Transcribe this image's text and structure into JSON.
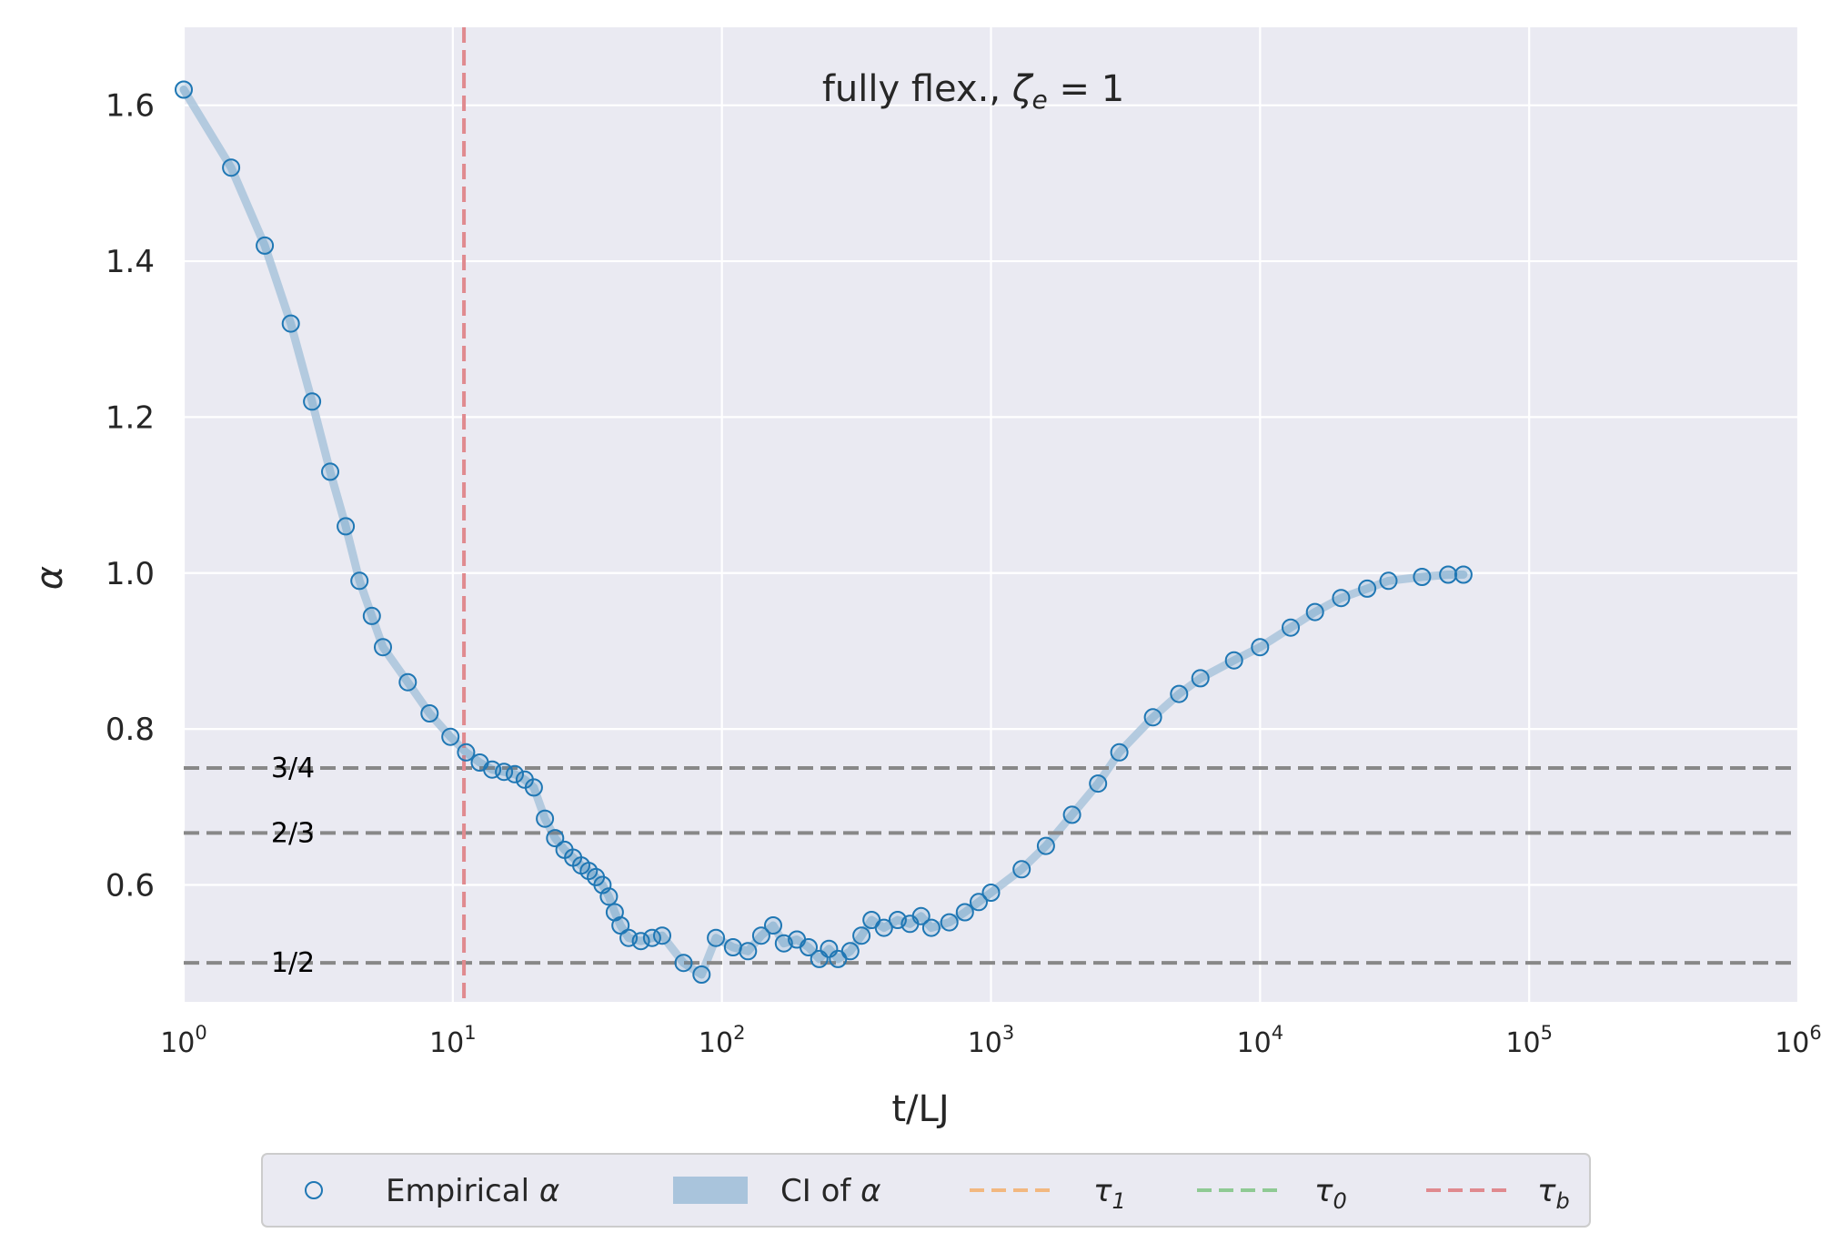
{
  "chart_data": {
    "type": "scatter",
    "title": "fully flex., ζ_e = 1",
    "title_main": "fully flex., ",
    "title_zeta": "ζ",
    "title_sub": "e",
    "title_eq": " = 1",
    "xlabel": "t/LJ",
    "ylabel": "α",
    "xscale": "log",
    "xlim": [
      1,
      1000000
    ],
    "ylim": [
      0.45,
      1.7
    ],
    "grid": true,
    "xticks": [
      {
        "value": 1,
        "base": "10",
        "exp": "0"
      },
      {
        "value": 10,
        "base": "10",
        "exp": "1"
      },
      {
        "value": 100,
        "base": "10",
        "exp": "2"
      },
      {
        "value": 1000,
        "base": "10",
        "exp": "3"
      },
      {
        "value": 10000,
        "base": "10",
        "exp": "4"
      },
      {
        "value": 100000,
        "base": "10",
        "exp": "5"
      },
      {
        "value": 1000000,
        "base": "10",
        "exp": "6"
      }
    ],
    "yticks": [
      {
        "value": 0.6,
        "label": "0.6"
      },
      {
        "value": 0.8,
        "label": "0.8"
      },
      {
        "value": 1.0,
        "label": "1.0"
      },
      {
        "value": 1.2,
        "label": "1.2"
      },
      {
        "value": 1.4,
        "label": "1.4"
      },
      {
        "value": 1.6,
        "label": "1.6"
      }
    ],
    "reference_lines": [
      {
        "value": 0.75,
        "label": "3/4"
      },
      {
        "value": 0.6667,
        "label": "2/3"
      },
      {
        "value": 0.5,
        "label": "1/2"
      }
    ],
    "tau_b": 11,
    "legend": {
      "placement": "bottom-center",
      "entries": [
        {
          "kind": "marker",
          "text": "Empirical ",
          "sym": "α",
          "sub": ""
        },
        {
          "kind": "patch",
          "text": "CI of ",
          "sym": "α",
          "sub": ""
        },
        {
          "kind": "dashed",
          "color": "#f2b880",
          "text": "",
          "sym": "τ",
          "sub": "1"
        },
        {
          "kind": "dashed",
          "color": "#8fca94",
          "text": "",
          "sym": "τ",
          "sub": "0"
        },
        {
          "kind": "dashed",
          "color": "#e08a8f",
          "text": "",
          "sym": "τ",
          "sub": "b"
        }
      ]
    },
    "colors": {
      "marker": "#1f77b4",
      "ci": "#a9c4dc",
      "tau_b": "#e08a8f",
      "reference": "#888888",
      "background": "#eaeaf2",
      "grid": "#ffffff"
    },
    "series": [
      {
        "name": "Empirical α",
        "points": [
          [
            1.0,
            1.62
          ],
          [
            1.5,
            1.52
          ],
          [
            2.0,
            1.42
          ],
          [
            2.5,
            1.32
          ],
          [
            3.0,
            1.22
          ],
          [
            3.5,
            1.13
          ],
          [
            4.0,
            1.06
          ],
          [
            4.5,
            0.99
          ],
          [
            5.0,
            0.945
          ],
          [
            5.5,
            0.905
          ],
          [
            6.8,
            0.86
          ],
          [
            8.2,
            0.82
          ],
          [
            9.8,
            0.79
          ],
          [
            11.2,
            0.77
          ],
          [
            12.6,
            0.757
          ],
          [
            14.0,
            0.748
          ],
          [
            15.5,
            0.745
          ],
          [
            17.0,
            0.742
          ],
          [
            18.5,
            0.735
          ],
          [
            20.0,
            0.725
          ],
          [
            22.0,
            0.685
          ],
          [
            24.0,
            0.66
          ],
          [
            26.0,
            0.645
          ],
          [
            28.0,
            0.635
          ],
          [
            30.0,
            0.625
          ],
          [
            32.0,
            0.618
          ],
          [
            34.0,
            0.61
          ],
          [
            36.0,
            0.6
          ],
          [
            38.0,
            0.585
          ],
          [
            40.0,
            0.565
          ],
          [
            42.0,
            0.548
          ],
          [
            45.0,
            0.532
          ],
          [
            50.0,
            0.528
          ],
          [
            55.0,
            0.532
          ],
          [
            60.0,
            0.535
          ],
          [
            72.0,
            0.5
          ],
          [
            84.0,
            0.485
          ],
          [
            95.0,
            0.532
          ],
          [
            110.0,
            0.52
          ],
          [
            125.0,
            0.515
          ],
          [
            140.0,
            0.535
          ],
          [
            155.0,
            0.548
          ],
          [
            170.0,
            0.525
          ],
          [
            190.0,
            0.53
          ],
          [
            210.0,
            0.52
          ],
          [
            230.0,
            0.505
          ],
          [
            250.0,
            0.518
          ],
          [
            270.0,
            0.505
          ],
          [
            300.0,
            0.515
          ],
          [
            330.0,
            0.535
          ],
          [
            360.0,
            0.555
          ],
          [
            400.0,
            0.545
          ],
          [
            450.0,
            0.555
          ],
          [
            500.0,
            0.55
          ],
          [
            550.0,
            0.56
          ],
          [
            600.0,
            0.545
          ],
          [
            700.0,
            0.552
          ],
          [
            800.0,
            0.565
          ],
          [
            900.0,
            0.578
          ],
          [
            1000.0,
            0.59
          ],
          [
            1300.0,
            0.62
          ],
          [
            1600.0,
            0.65
          ],
          [
            2000.0,
            0.69
          ],
          [
            2500.0,
            0.73
          ],
          [
            3000.0,
            0.77
          ],
          [
            4000.0,
            0.815
          ],
          [
            5000.0,
            0.845
          ],
          [
            6000.0,
            0.865
          ],
          [
            8000.0,
            0.888
          ],
          [
            10000.0,
            0.905
          ],
          [
            13000.0,
            0.93
          ],
          [
            16000.0,
            0.95
          ],
          [
            20000.0,
            0.968
          ],
          [
            25000.0,
            0.98
          ],
          [
            30000.0,
            0.99
          ],
          [
            40000.0,
            0.995
          ],
          [
            50000.0,
            0.998
          ],
          [
            57000.0,
            0.998
          ]
        ]
      }
    ]
  }
}
